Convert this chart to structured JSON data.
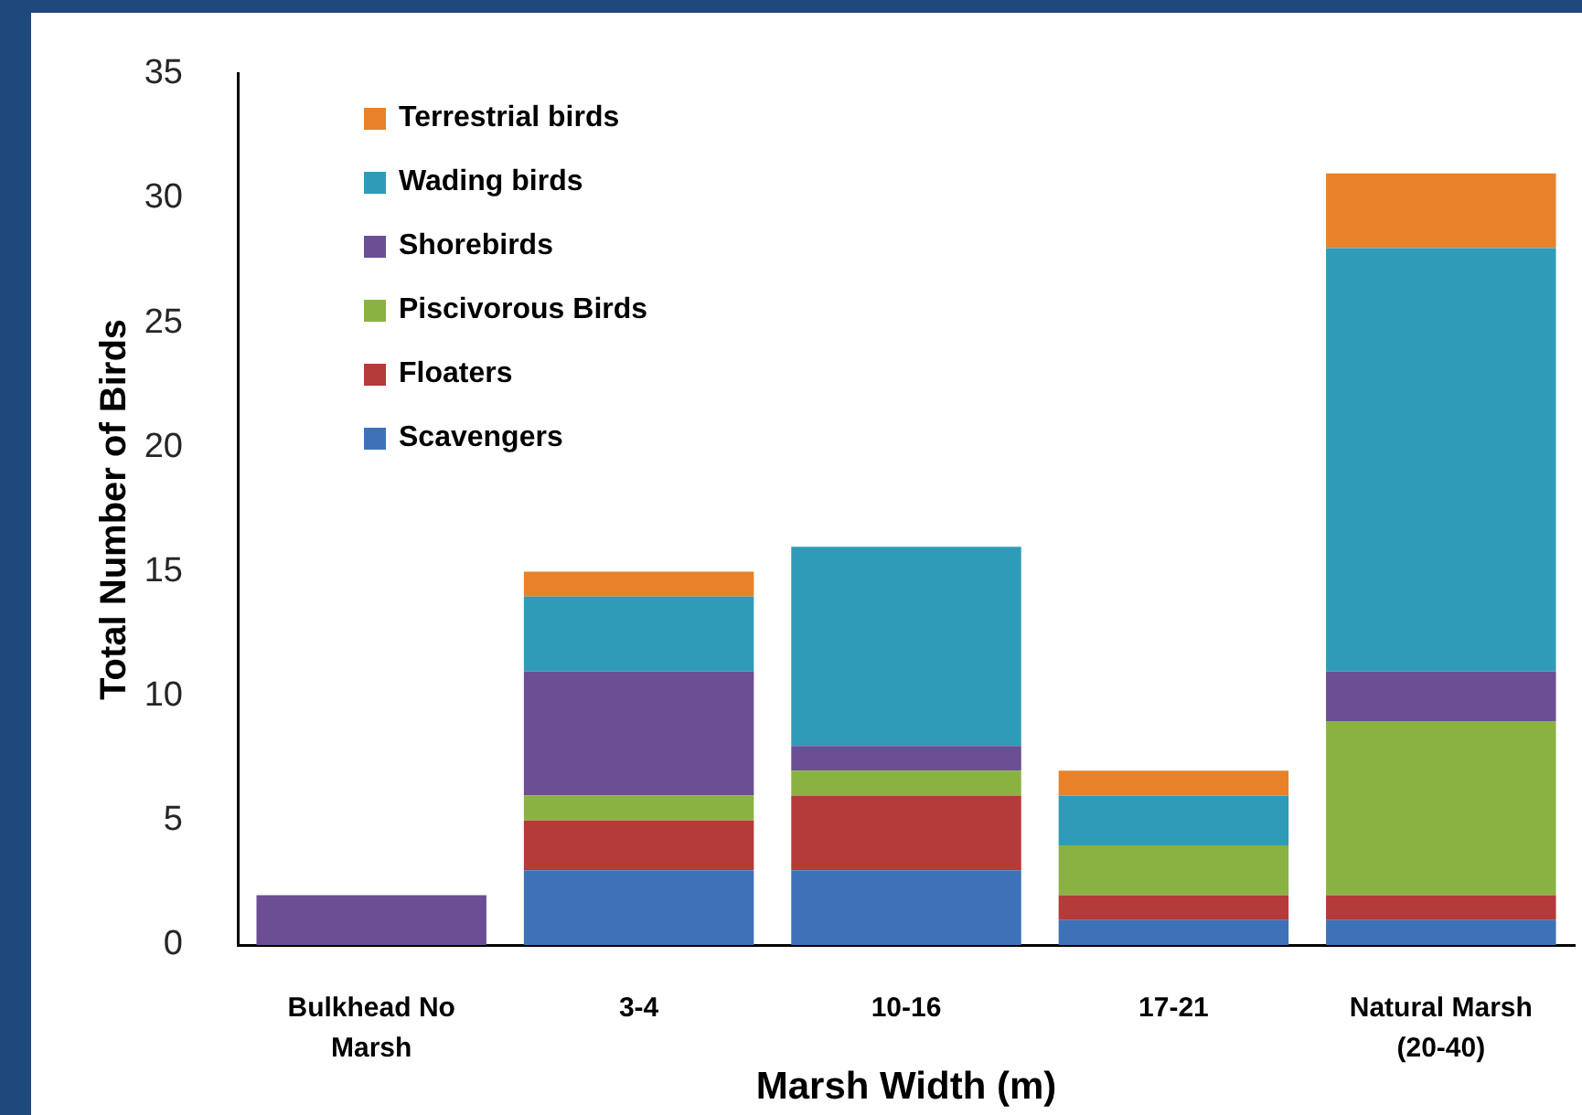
{
  "chart_data": {
    "type": "bar",
    "stacked": true,
    "xlabel": "Marsh Width (m)",
    "ylabel": "Total Number of Birds",
    "categories": [
      "Bulkhead No Marsh",
      "3-4",
      "10-16",
      "17-21",
      "Natural Marsh (20-40)"
    ],
    "series": [
      {
        "name": "Scavengers",
        "color": "#3d72b8",
        "values": [
          0,
          3,
          3,
          1,
          1
        ]
      },
      {
        "name": "Floaters",
        "color": "#b53a3a",
        "values": [
          0,
          2,
          3,
          1,
          1
        ]
      },
      {
        "name": "Piscivorous Birds",
        "color": "#8ab243",
        "values": [
          0,
          1,
          1,
          2,
          7
        ]
      },
      {
        "name": "Shorebirds",
        "color": "#6b4e94",
        "values": [
          2,
          5,
          1,
          0,
          2
        ]
      },
      {
        "name": "Wading birds",
        "color": "#2f9bb8",
        "values": [
          0,
          3,
          8,
          2,
          17
        ]
      },
      {
        "name": "Terrestrial birds",
        "color": "#e7822a",
        "values": [
          0,
          1,
          0,
          1,
          3
        ]
      }
    ],
    "ylim": [
      0,
      35
    ],
    "yticks": [
      0,
      5,
      10,
      15,
      20,
      25,
      30,
      35
    ],
    "grid": false,
    "legend": "top left"
  }
}
